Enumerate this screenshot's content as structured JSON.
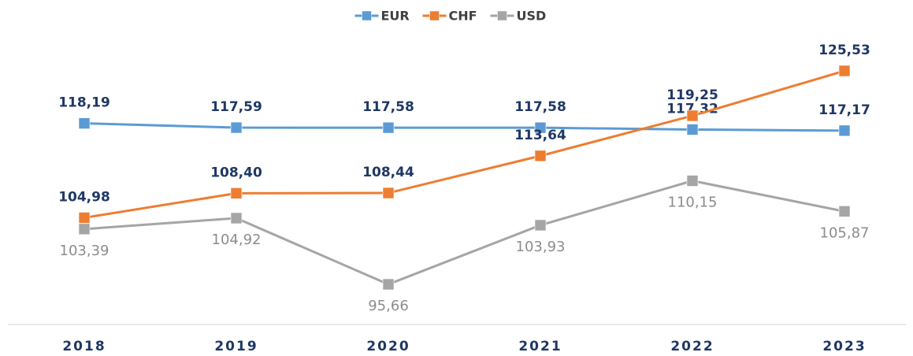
{
  "chart_data": {
    "type": "line",
    "categories": [
      "2018",
      "2019",
      "2020",
      "2021",
      "2022",
      "2023"
    ],
    "series": [
      {
        "name": "EUR",
        "color": "#5b9bd5",
        "values": [
          118.19,
          117.59,
          117.58,
          117.58,
          117.32,
          117.17
        ],
        "value_labels": [
          "118,19",
          "117,59",
          "117,58",
          "117,58",
          "117,32",
          "117,17"
        ]
      },
      {
        "name": "CHF",
        "color": "#ed7d31",
        "values": [
          104.98,
          108.4,
          108.44,
          113.64,
          119.25,
          125.53
        ],
        "value_labels": [
          "104,98",
          "108,40",
          "108,44",
          "113,64",
          "119,25",
          "125,53"
        ]
      },
      {
        "name": "USD",
        "color": "#a5a5a5",
        "values": [
          103.39,
          104.92,
          95.66,
          103.93,
          110.15,
          105.87
        ],
        "value_labels": [
          "103,39",
          "104,92",
          "95,66",
          "103,93",
          "110,15",
          "105,87"
        ]
      }
    ],
    "legend": "top"
  }
}
